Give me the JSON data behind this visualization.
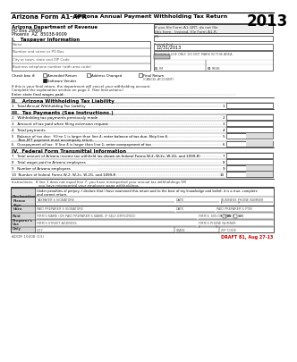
{
  "title_left": "Arizona Form A1-APR",
  "title_center": "Arizona Annual Payment Withholding Tax Return",
  "title_year": "2013",
  "agency_name": "Arizona Department of Revenue",
  "agency_address1": "PO Box 29009",
  "agency_address2": "Phoenix  AZ  85038-9009",
  "notice_box": "If you file Form A1-QRT, do not file\nthis form.  Instead, file Form A1-R.",
  "ein_label": "EIN",
  "period_end_label": "Period End",
  "period_end_value": "12/31/2013",
  "rev_use_label": "REVENUE USE ONLY. DO NOT MARK IN THIS AREA.",
  "section1_title": "I.   Taxpayer Information",
  "field_name": "Name",
  "field_address": "Number and street or PO Box",
  "field_city": "City or town, state and ZIP Code",
  "field_phone": "Business telephone number (with area code)",
  "check_label": "Check box if:",
  "check1": "Amended Return",
  "check2": "Address Changed",
  "check3": "Final Return",
  "check3b": "(CANCEL ACCOUNT)",
  "check4": "Software Vendor",
  "final_text1": "If this is your final return, the department will cancel your withholding account.",
  "final_text2": "Complete the explanation section on page 2. (See Instructions.)",
  "wages_label": "Enter state final wages paid:",
  "section2_title": "II.   Arizona Withholding Tax Liability",
  "line1_label": "1   Total Annual Withholding Tax Liability",
  "line1_num": "1",
  "section3_title": "III.  Tax Payments (See Instructions.)",
  "line2_label": "2   Withholding tax payments previously made",
  "line2_num": "2",
  "line3_label": "3   Amount of tax paid when filing extension request",
  "line3_num": "3",
  "line4_label": "4   Total payments",
  "line4_num": "4",
  "line5a": "5   Balance of tax due:  If line 1 is larger than line 4, enter balance of tax due. Skip line 6.",
  "line5b": "      Non-EFT payment must accompany return.",
  "line5_num": "5",
  "line6_label": "6   Overpayment of tax:  If line 4 is larger than line 1, enter overpayment of tax",
  "line6_num": "6",
  "section4_title": "IV.  Federal Form Transmittal Information",
  "line7_label": "7   Total amount of Arizona income tax withheld (as shown on federal Forms W-2, W-2c, W-2G, and 1099-R)",
  "line7_num": "7",
  "line8_label": "8   Total wages paid to Arizona employees",
  "line8_num": "8",
  "line9_label": "9   Number of Arizona employees",
  "line9_num": "9",
  "line10_label": "10  Number of federal Forms W-2, W-2c, W-2G, and 1099-R",
  "line10_num": "10",
  "instr1": "Instructions:  If line 1 does not equal line 7, you have misreported your annual tax withholdings OR",
  "instr2": "                        you have misreported your employee wage withholdings.",
  "decl_text1": "Under penalties of perjury, I declare that I have examined this return and to the best of my knowledge and belief, it is a true, complete",
  "decl_text2": "and correct return.",
  "decl_label": "Declaration",
  "sign_label": "Please\nSign\nHere",
  "sig_label": "TAXPAYER'S SIGNATURE",
  "date_label1": "DATE",
  "biz_phone_label": "BUSINESS PHONE NUMBER",
  "paid_label": "Paid\nPreparer's\nUse\nOnly",
  "paid_sig_label": "PAID PREPARER'S SIGNATURE",
  "date_label2": "DATE",
  "ptin_label": "PAID PREPARER'S PTIN",
  "firm_name_label": "FIRM'S NAME (OR PAID PREPARER'S NAME, IF SELF-EMPLOYED)",
  "firm_ein_label": "FIRM'S  EIN OR  SSN",
  "firm_addr_label": "FIRM'S STREET ADDRESS",
  "firm_phone_label": "FIRM'S PHONE NUMBER",
  "city_label": "CITY",
  "state_label": "STATE",
  "zip_label": "ZIP CODE",
  "footer_left": "ADOR 10608 (13)",
  "footer_right": "DRAFT 81, Aug 27-13",
  "footer_right_color": "#cc0000"
}
